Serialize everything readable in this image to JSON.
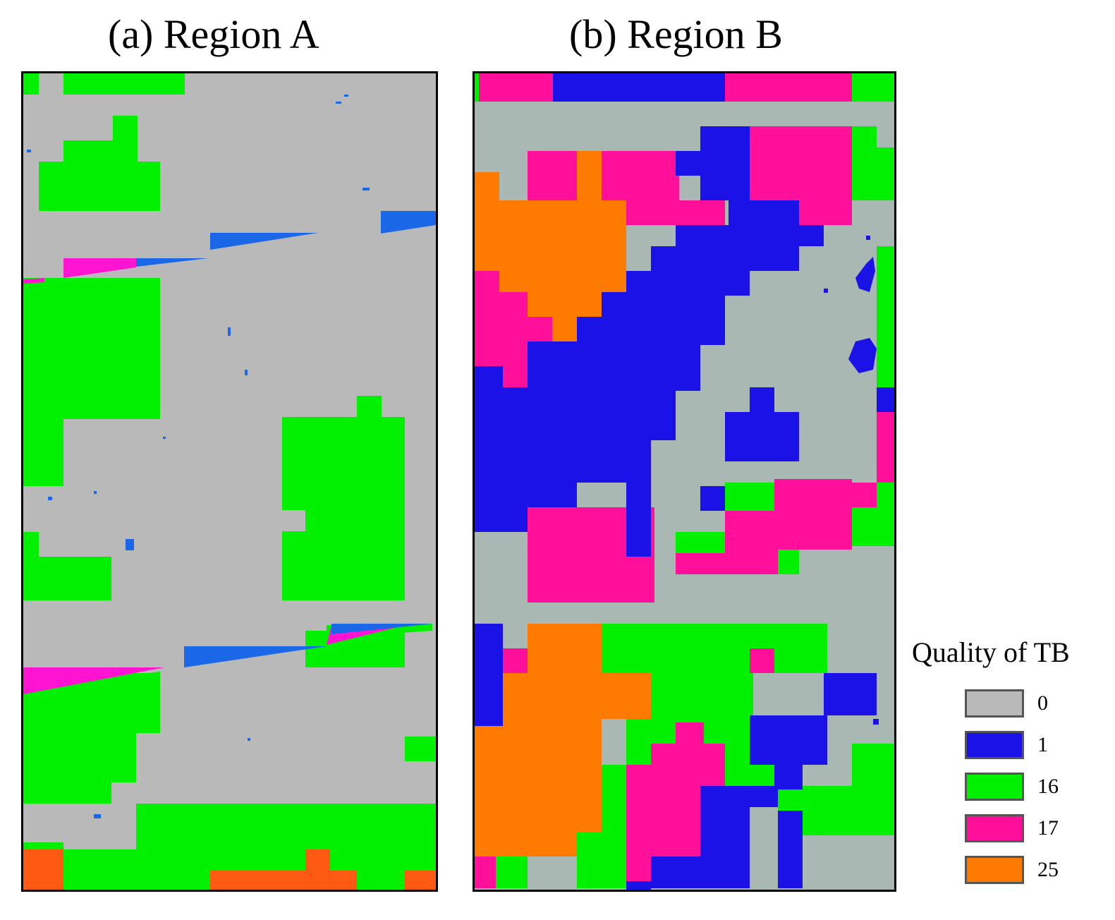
{
  "titles": {
    "a": "(a) Region A",
    "b": "(b) Region B"
  },
  "legend": {
    "title": "Quality of TB",
    "items": [
      {
        "label": "0",
        "color": "#b9b9b9"
      },
      {
        "label": "1",
        "color": "#1a12e6"
      },
      {
        "label": "16",
        "color": "#00f000"
      },
      {
        "label": "17",
        "color": "#ff0f9a"
      },
      {
        "label": "25",
        "color": "#ff7a00"
      }
    ]
  },
  "palette": {
    "region_a": {
      "0": "#b9b9b9",
      "1": "#1a68e8",
      "16": "#00f000",
      "17": "#ff14d2",
      "25": "#ff5a14"
    },
    "region_b": {
      "0": "#a9b8b2",
      "1": "#1a12e6",
      "16": "#00f000",
      "17": "#ff0f9a",
      "25": "#ff7a00"
    }
  }
}
